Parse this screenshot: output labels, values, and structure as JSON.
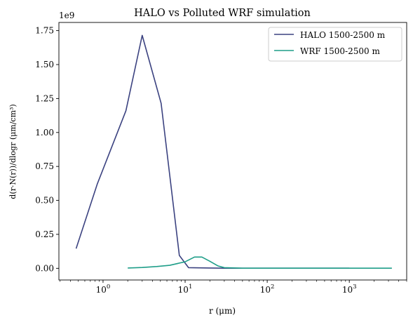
{
  "chart_data": {
    "type": "line",
    "title": "HALO vs Polluted WRF simulation",
    "xlabel": "r (μm)",
    "ylabel": "d(r·N(r))/dlogr  (μm/cm³)",
    "x_scale": "log",
    "xlim": [
      0.29,
      5000
    ],
    "ylim": [
      -0.086,
      1.81
    ],
    "y_multiplier_label": "1e9",
    "x_ticks": [
      {
        "value": 1,
        "base": "10",
        "exp": "0"
      },
      {
        "value": 10,
        "base": "10",
        "exp": "1"
      },
      {
        "value": 100,
        "base": "10",
        "exp": "2"
      },
      {
        "value": 1000,
        "base": "10",
        "exp": "3"
      }
    ],
    "y_ticks": [
      {
        "value": 0.0,
        "label": "0.00"
      },
      {
        "value": 0.25,
        "label": "0.25"
      },
      {
        "value": 0.5,
        "label": "0.50"
      },
      {
        "value": 0.75,
        "label": "0.75"
      },
      {
        "value": 1.0,
        "label": "1.00"
      },
      {
        "value": 1.25,
        "label": "1.25"
      },
      {
        "value": 1.5,
        "label": "1.50"
      },
      {
        "value": 1.75,
        "label": "1.75"
      }
    ],
    "grid": false,
    "legend_position": "top-right",
    "series": [
      {
        "name": "HALO 1500-2500 m",
        "color": "#3b4280",
        "x": [
          0.47,
          0.85,
          1.9,
          3.0,
          5.1,
          8.5,
          11,
          20,
          30,
          100,
          300,
          1000
        ],
        "y": [
          0.145,
          0.62,
          1.16,
          1.715,
          1.215,
          0.095,
          0.005,
          0.002,
          0.001,
          0.001,
          0.001,
          0.001
        ]
      },
      {
        "name": "WRF 1500-2500 m",
        "color": "#1f9e89",
        "x": [
          2.0,
          3.0,
          4.5,
          6.5,
          10,
          13,
          16,
          20,
          25,
          30,
          50,
          100,
          300,
          1000,
          3300
        ],
        "y": [
          0.002,
          0.006,
          0.013,
          0.022,
          0.048,
          0.083,
          0.083,
          0.052,
          0.018,
          0.005,
          0.001,
          0.001,
          0.001,
          0.001,
          0.001
        ]
      }
    ]
  }
}
